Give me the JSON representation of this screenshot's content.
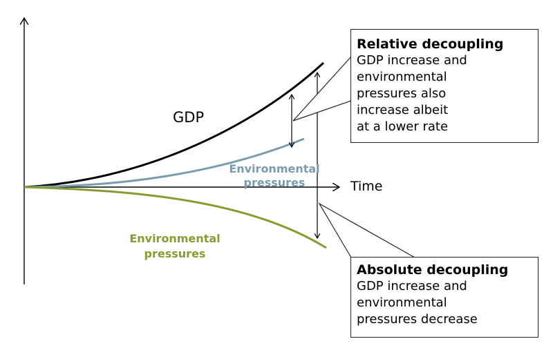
{
  "diagram": {
    "gdp_label": "GDP",
    "time_label": "Time",
    "env_label_relative": "Environmental\npressures",
    "env_label_absolute": "Environmental\npressures",
    "relative_box": {
      "title": "Relative decoupling",
      "body": "GDP increase and\nenvironmental\npressures also\nincrease albeit\nat a lower rate"
    },
    "absolute_box": {
      "title": "Absolute decoupling",
      "body": "GDP increase and\nenvironmental\npressures decrease"
    },
    "colors": {
      "gdp": "#000000",
      "env_relative": "#7a9cb0",
      "env_absolute": "#8a9a30",
      "axes": "#000000"
    }
  }
}
